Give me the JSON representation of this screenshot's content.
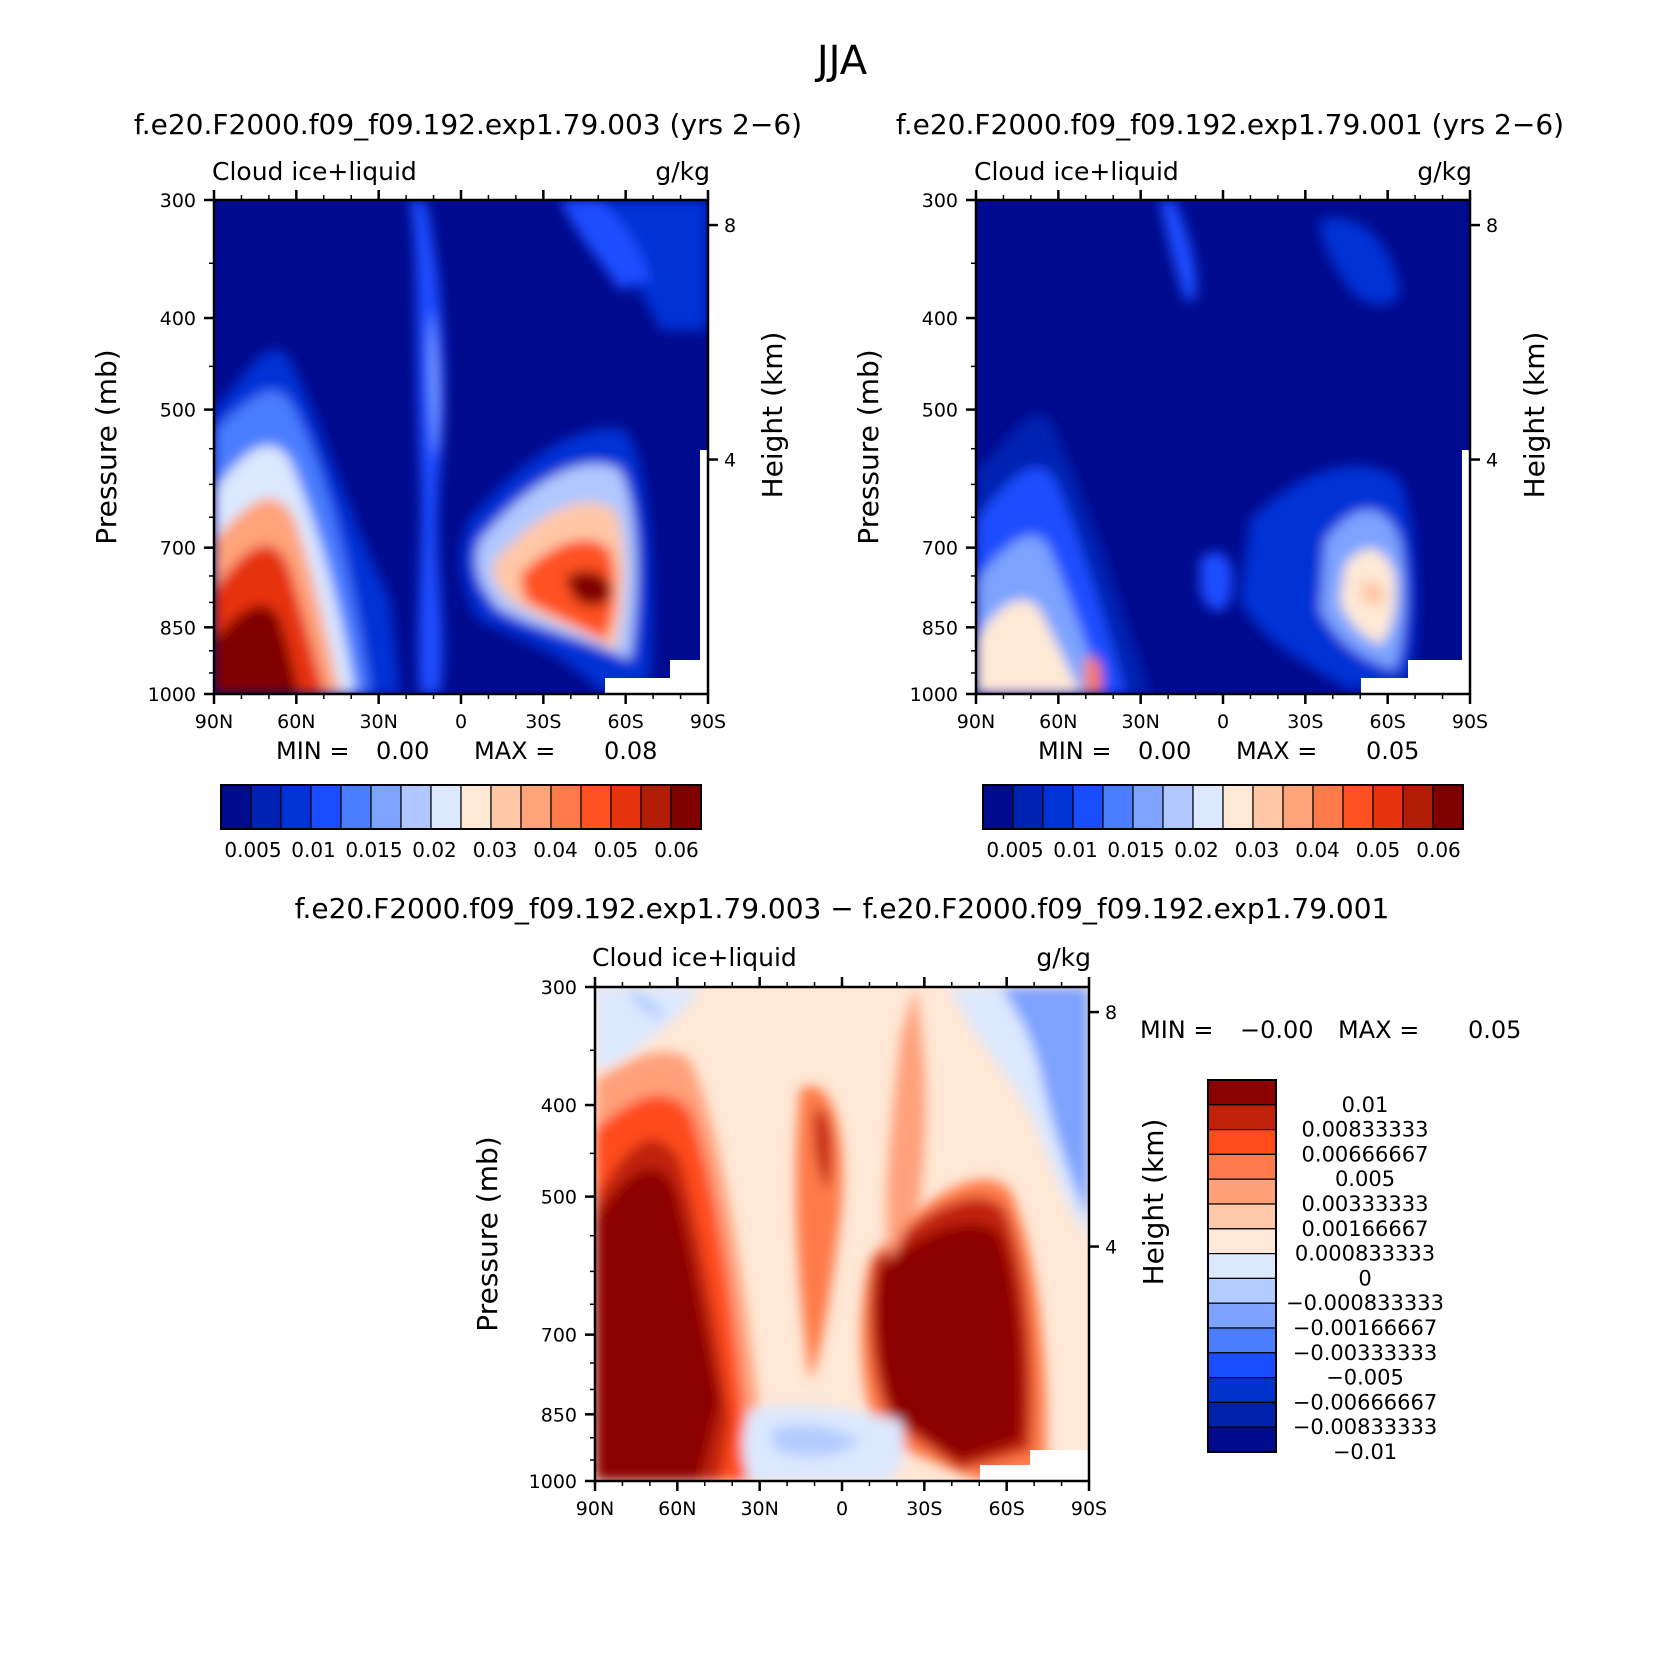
{
  "page": {
    "title": "JJA"
  },
  "panels": [
    {
      "id": "a",
      "case_title": "f.e20.F2000.f09_f09.192.exp1.79.003 (yrs 2−6)",
      "variable": "Cloud  ice+liquid",
      "units": "g/kg",
      "minmax": {
        "min_label": "MIN =",
        "min_value": "0.00",
        "max_label": "MAX =",
        "max_value": "0.08"
      }
    },
    {
      "id": "b",
      "case_title": "f.e20.F2000.f09_f09.192.exp1.79.001 (yrs 2−6)",
      "variable": "Cloud  ice+liquid",
      "units": "g/kg",
      "minmax": {
        "min_label": "MIN =",
        "min_value": "0.00",
        "max_label": "MAX =",
        "max_value": "0.05"
      }
    },
    {
      "id": "diff",
      "case_title": "f.e20.F2000.f09_f09.192.exp1.79.003 − f.e20.F2000.f09_f09.192.exp1.79.001",
      "variable": "Cloud  ice+liquid",
      "units": "g/kg",
      "minmax": {
        "min_label": "MIN =",
        "min_value": "−0.00",
        "max_label": "MAX =",
        "max_value": "0.05"
      }
    }
  ],
  "axes": {
    "ylabel_left": "Pressure (mb)",
    "ylabel_right": "Height (km)",
    "pressure_ticks": [
      "300",
      "400",
      "500",
      "700",
      "850",
      "1000"
    ],
    "height_ticks": [
      "8",
      "4"
    ],
    "lat_ticks": [
      "90N",
      "60N",
      "30N",
      "0",
      "30S",
      "60S",
      "90S"
    ]
  },
  "colorbar_top": {
    "colors": [
      "#000b8f",
      "#0022b2",
      "#0033d6",
      "#1a4dff",
      "#4a7dff",
      "#7da3ff",
      "#b0c8ff",
      "#dbe8ff",
      "#ffe9d6",
      "#ffc7a6",
      "#ffa37a",
      "#ff7a4a",
      "#ff5122",
      "#e63310",
      "#b31d08",
      "#800000"
    ],
    "labels": [
      "0.005",
      "0.01",
      "0.015",
      "0.02",
      "0.03",
      "0.04",
      "0.05",
      "0.06"
    ]
  },
  "colorbar_diff": {
    "colors": [
      "#8b0000",
      "#bf2208",
      "#ff4b1a",
      "#ff7a4a",
      "#ffa07a",
      "#ffc8a8",
      "#ffe8d6",
      "#dbe8ff",
      "#b3ccff",
      "#7da3ff",
      "#4a7dff",
      "#1a4dff",
      "#0033cc",
      "#0022aa",
      "#000b8f"
    ],
    "labels": [
      "0.01",
      "0.00833333",
      "0.00666667",
      "0.005",
      "0.00333333",
      "0.00166667",
      "0.000833333",
      "0",
      "−0.000833333",
      "−0.00166667",
      "−0.00333333",
      "−0.005",
      "−0.00666667",
      "−0.00833333",
      "−0.01"
    ]
  },
  "chart_data": [
    {
      "type": "heatmap",
      "title": "f.e20.F2000.f09_f09.192.exp1.79.003 (yrs 2−6)",
      "subtitle": "Cloud  ice+liquid",
      "units": "g/kg",
      "xlabel": "",
      "ylabel": "Pressure (mb)",
      "y2label": "Height (km)",
      "x_ticks": [
        "90N",
        "60N",
        "30N",
        "0",
        "30S",
        "60S",
        "90S"
      ],
      "y_ticks": [
        300,
        400,
        500,
        700,
        850,
        1000
      ],
      "ylim": [
        1000,
        300
      ],
      "min": 0.0,
      "max": 0.08,
      "features": [
        {
          "lat": 70,
          "p": 880,
          "value": 0.06
        },
        {
          "lat": -42,
          "p": 840,
          "value": 0.06
        },
        {
          "lat": 8,
          "p": 560,
          "value": 0.02
        }
      ]
    },
    {
      "type": "heatmap",
      "title": "f.e20.F2000.f09_f09.192.exp1.79.001 (yrs 2−6)",
      "subtitle": "Cloud  ice+liquid",
      "units": "g/kg",
      "xlabel": "",
      "ylabel": "Pressure (mb)",
      "y2label": "Height (km)",
      "x_ticks": [
        "90N",
        "60N",
        "30N",
        "0",
        "30S",
        "60S",
        "90S"
      ],
      "y_ticks": [
        300,
        400,
        500,
        700,
        850,
        1000
      ],
      "ylim": [
        1000,
        300
      ],
      "min": 0.0,
      "max": 0.05,
      "features": [
        {
          "lat": 60,
          "p": 900,
          "value": 0.03
        },
        {
          "lat": -48,
          "p": 850,
          "value": 0.03
        }
      ]
    },
    {
      "type": "heatmap",
      "title": "f.e20.F2000.f09_f09.192.exp1.79.003 − f.e20.F2000.f09_f09.192.exp1.79.001",
      "subtitle": "Cloud  ice+liquid",
      "units": "g/kg",
      "xlabel": "",
      "ylabel": "Pressure (mb)",
      "y2label": "Height (km)",
      "x_ticks": [
        "90N",
        "60N",
        "30N",
        "0",
        "30S",
        "60S",
        "90S"
      ],
      "y_ticks": [
        300,
        400,
        500,
        700,
        850,
        1000
      ],
      "ylim": [
        1000,
        300
      ],
      "min": -0.0,
      "max": 0.05,
      "features": [
        {
          "lat": 68,
          "p": 850,
          "value": 0.01
        },
        {
          "lat": -45,
          "p": 830,
          "value": 0.01
        },
        {
          "lat": 5,
          "p": 560,
          "value": 0.006
        }
      ]
    }
  ]
}
